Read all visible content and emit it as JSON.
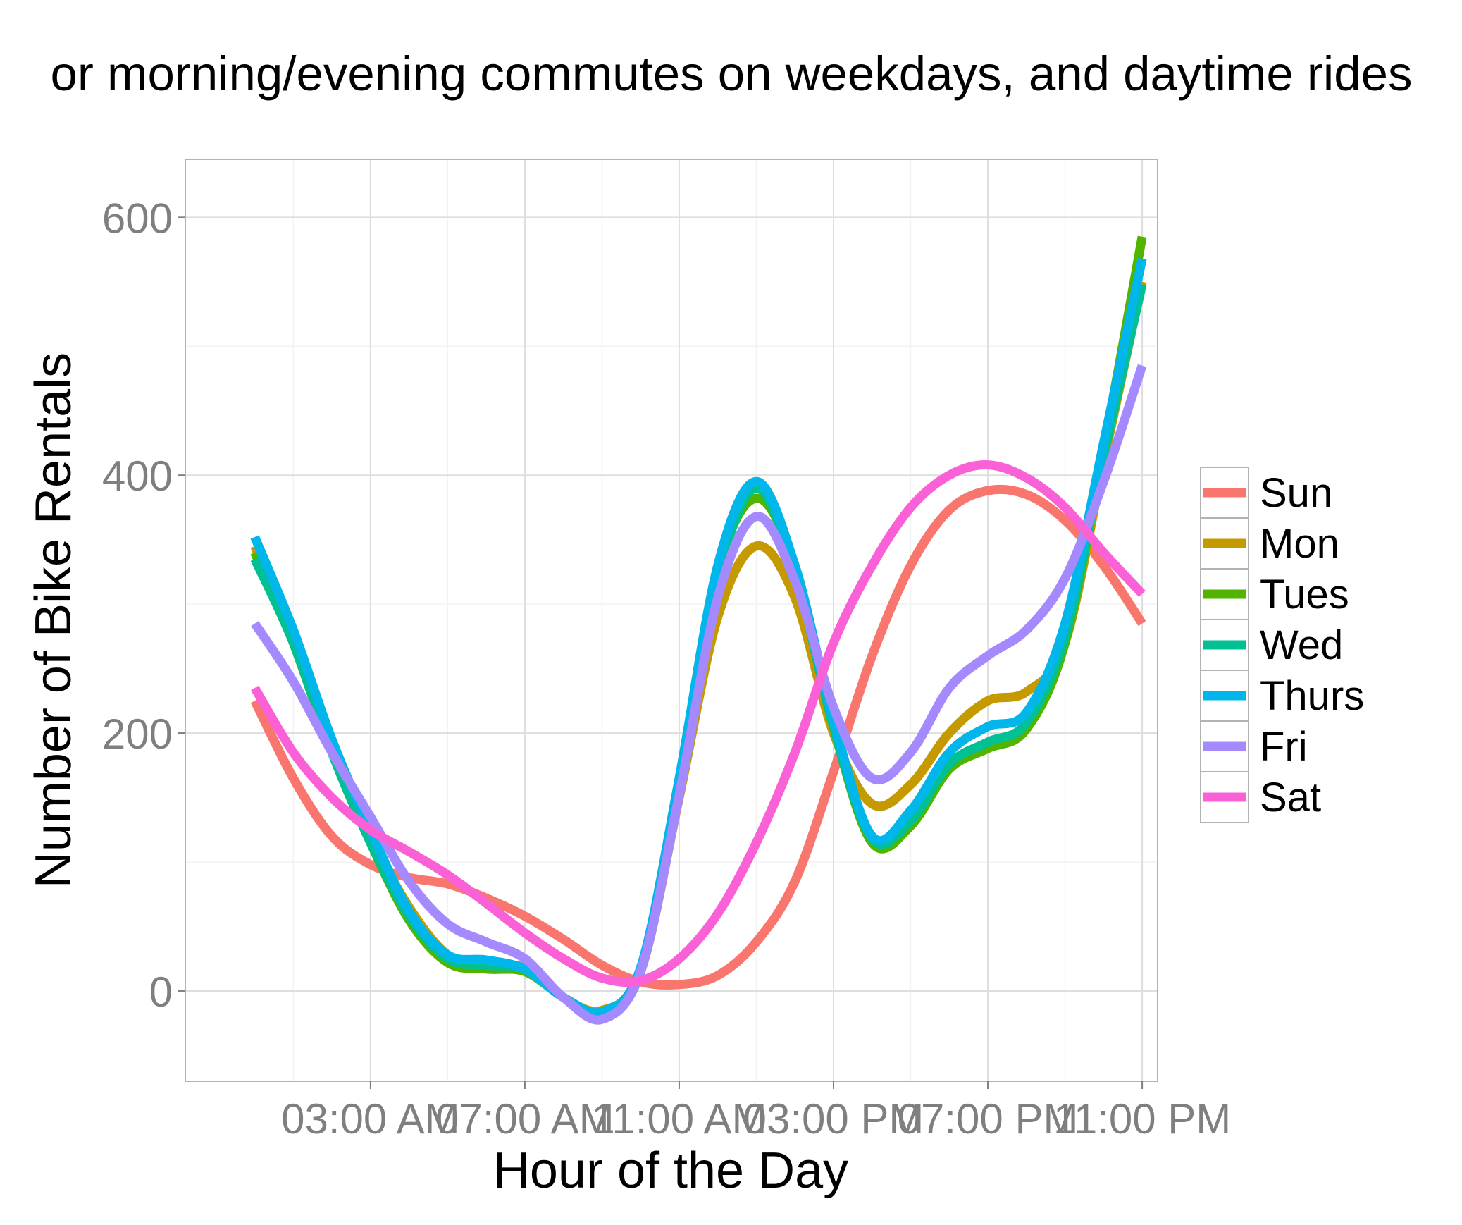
{
  "chart_data": {
    "type": "line",
    "title": "or morning/evening commutes on weekdays, and daytime rides",
    "xlabel": "Hour of the Day",
    "ylabel": "Number of Bike Rentals",
    "xlim": [
      -1.8,
      23.4
    ],
    "ylim": [
      -70,
      645
    ],
    "grid": true,
    "legend_position": "right",
    "y_ticks": [
      0,
      200,
      400,
      600
    ],
    "y_tick_labels": [
      "0",
      "200",
      "400",
      "600"
    ],
    "x_ticks": [
      3,
      7,
      11,
      15,
      19,
      23
    ],
    "x_tick_labels": [
      "03:00 AM",
      "07:00 AM",
      "11:00 AM",
      "03:00 PM",
      "07:00 PM",
      "11:00 PM"
    ],
    "x": [
      0,
      1,
      2,
      3,
      4,
      5,
      6,
      7,
      8,
      9,
      10,
      11,
      12,
      13,
      14,
      15,
      16,
      17,
      18,
      19,
      20,
      21,
      22,
      23
    ],
    "series": [
      {
        "name": "Sun",
        "color": "#F8766D",
        "values": [
          225,
          165,
          120,
          98,
          88,
          83,
          72,
          58,
          40,
          20,
          7,
          5,
          12,
          38,
          85,
          170,
          260,
          330,
          373,
          388,
          385,
          365,
          330,
          285
        ]
      },
      {
        "name": "Mon",
        "color": "#C49A00",
        "values": [
          345,
          275,
          190,
          120,
          65,
          28,
          20,
          18,
          -5,
          -15,
          15,
          150,
          290,
          345,
          305,
          200,
          145,
          160,
          200,
          225,
          232,
          270,
          410,
          550
        ]
      },
      {
        "name": "Tues",
        "color": "#53B400",
        "values": [
          340,
          270,
          185,
          115,
          55,
          22,
          17,
          15,
          -5,
          -20,
          15,
          160,
          325,
          382,
          330,
          205,
          115,
          128,
          172,
          188,
          203,
          270,
          420,
          585
        ]
      },
      {
        "name": "Wed",
        "color": "#00C094",
        "values": [
          335,
          270,
          185,
          115,
          58,
          25,
          20,
          17,
          -5,
          -18,
          15,
          158,
          320,
          390,
          325,
          205,
          118,
          132,
          176,
          193,
          208,
          275,
          415,
          548
        ]
      },
      {
        "name": "Thurs",
        "color": "#00B6EB",
        "values": [
          352,
          280,
          195,
          125,
          62,
          28,
          24,
          17,
          -5,
          -16,
          18,
          165,
          330,
          395,
          330,
          210,
          120,
          140,
          185,
          205,
          216,
          285,
          425,
          568
        ]
      },
      {
        "name": "Fri",
        "color": "#A58AFF",
        "values": [
          285,
          240,
          185,
          135,
          85,
          52,
          38,
          25,
          -5,
          -22,
          15,
          152,
          305,
          368,
          318,
          220,
          165,
          185,
          235,
          260,
          280,
          320,
          395,
          485
        ]
      },
      {
        "name": "Sat",
        "color": "#FB61D7",
        "values": [
          235,
          185,
          150,
          125,
          108,
          90,
          68,
          45,
          25,
          10,
          8,
          25,
          60,
          115,
          185,
          270,
          330,
          375,
          400,
          408,
          398,
          375,
          340,
          308
        ]
      }
    ]
  }
}
